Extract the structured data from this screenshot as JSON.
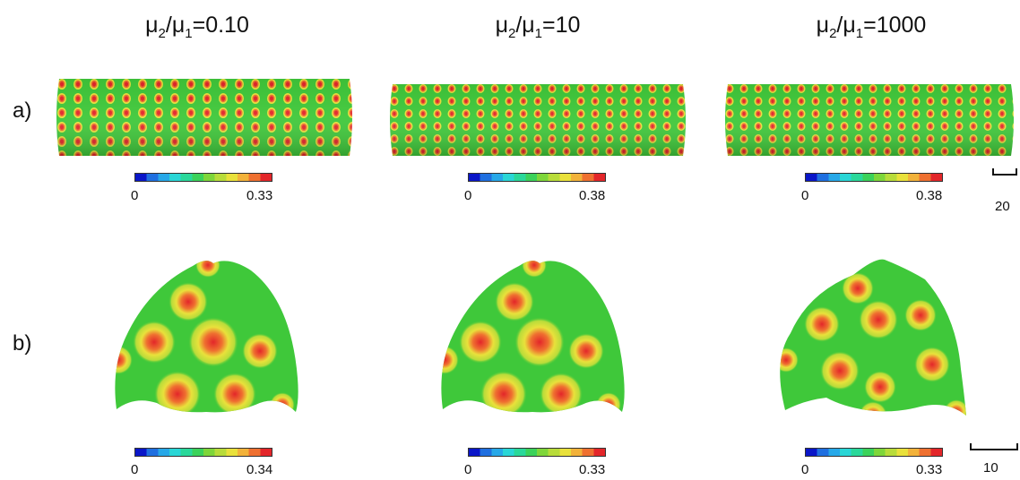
{
  "titles": [
    {
      "prefix": "μ",
      "sub1": "2",
      "mid": "/μ",
      "sub2": "1",
      "suffix": "=0.10"
    },
    {
      "prefix": "μ",
      "sub1": "2",
      "mid": "/μ",
      "sub2": "1",
      "suffix": "=10"
    },
    {
      "prefix": "μ",
      "sub1": "2",
      "mid": "/μ",
      "sub2": "1",
      "suffix": "=1000"
    }
  ],
  "row_labels": {
    "a": "a)",
    "b": "b)"
  },
  "colorbars": {
    "row_a": [
      {
        "min": "0",
        "max": "0.33"
      },
      {
        "min": "0",
        "max": "0.38"
      },
      {
        "min": "0",
        "max": "0.38"
      }
    ],
    "row_b": [
      {
        "min": "0",
        "max": "0.34"
      },
      {
        "min": "0",
        "max": "0.33"
      },
      {
        "min": "0",
        "max": "0.33"
      }
    ]
  },
  "scalebars": {
    "row_a": "20",
    "row_b": "10"
  },
  "colors": {
    "base_green": "#3fc83a",
    "spot_red": "#e3262a",
    "spot_yellow": "#e9e13b"
  }
}
